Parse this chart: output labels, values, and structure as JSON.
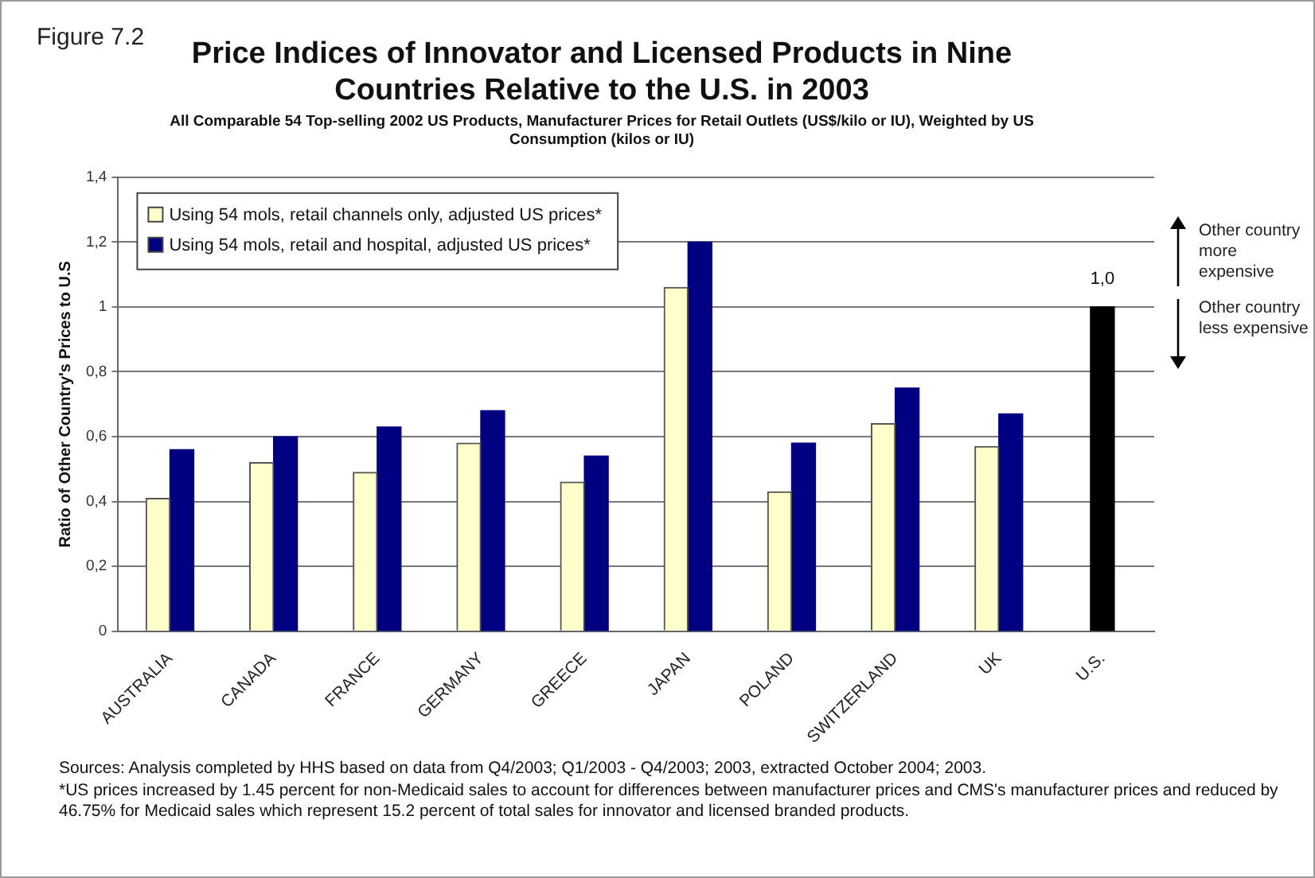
{
  "chart_data": {
    "type": "bar",
    "title": "Price Indices of Innovator and Licensed Products in Nine Countries Relative to the U.S. in 2003",
    "subtitle": "All Comparable 54 Top-selling 2002 US Products, Manufacturer Prices for Retail Outlets (US$/kilo or IU), Weighted by US Consumption (kilos or IU)",
    "ylabel": "Ratio of Other Country's Prices to U.S",
    "categories": [
      "AUSTRALIA",
      "CANADA",
      "FRANCE",
      "GERMANY",
      "GREECE",
      "JAPAN",
      "POLAND",
      "SWITZERLAND",
      "UK",
      "U.S."
    ],
    "series": [
      {
        "name": "Using 54 mols, retail channels only, adjusted US prices*",
        "color": "#ffffcc",
        "values": [
          0.41,
          0.52,
          0.49,
          0.58,
          0.46,
          1.06,
          0.43,
          0.64,
          0.57,
          null
        ]
      },
      {
        "name": "Using 54 mols, retail and hospital, adjusted US prices*",
        "color": "#000080",
        "values": [
          0.56,
          0.6,
          0.63,
          0.68,
          0.54,
          1.2,
          0.58,
          0.75,
          0.67,
          null
        ]
      },
      {
        "color": "#000000",
        "values": [
          null,
          null,
          null,
          null,
          null,
          null,
          null,
          null,
          null,
          1.0
        ],
        "value_labels": [
          null,
          null,
          null,
          null,
          null,
          null,
          null,
          null,
          null,
          "1,0"
        ]
      }
    ],
    "ylim": [
      0,
      1.4
    ],
    "yticks": [
      0,
      {
        "value": 0.2,
        "label": "0,2"
      },
      {
        "value": 0.4,
        "label": "0,4"
      },
      {
        "value": 0.6,
        "label": "0,6"
      },
      {
        "value": 0.8,
        "label": "0,8"
      },
      1,
      {
        "value": 1.2,
        "label": "1,2"
      },
      {
        "value": 1.4,
        "label": "1,4"
      }
    ],
    "grid": "y",
    "legend": "top left",
    "annotations": [
      "Figure 7.2",
      "Other country more expensive",
      "Other country less expensive",
      "Sources: Analysis completed by HHS based on data from Q4/2003; Q1/2003 - Q4/2003; 2003, extracted October 2004; 2003.",
      "*US prices increased by 1.45 percent for non-Medicaid sales to account for differences between manufacturer prices and CMS's manufacturer prices and reduced by 46.75% for Medicaid sales which represent 15.2 percent of total sales for innovator and licensed branded products."
    ]
  }
}
